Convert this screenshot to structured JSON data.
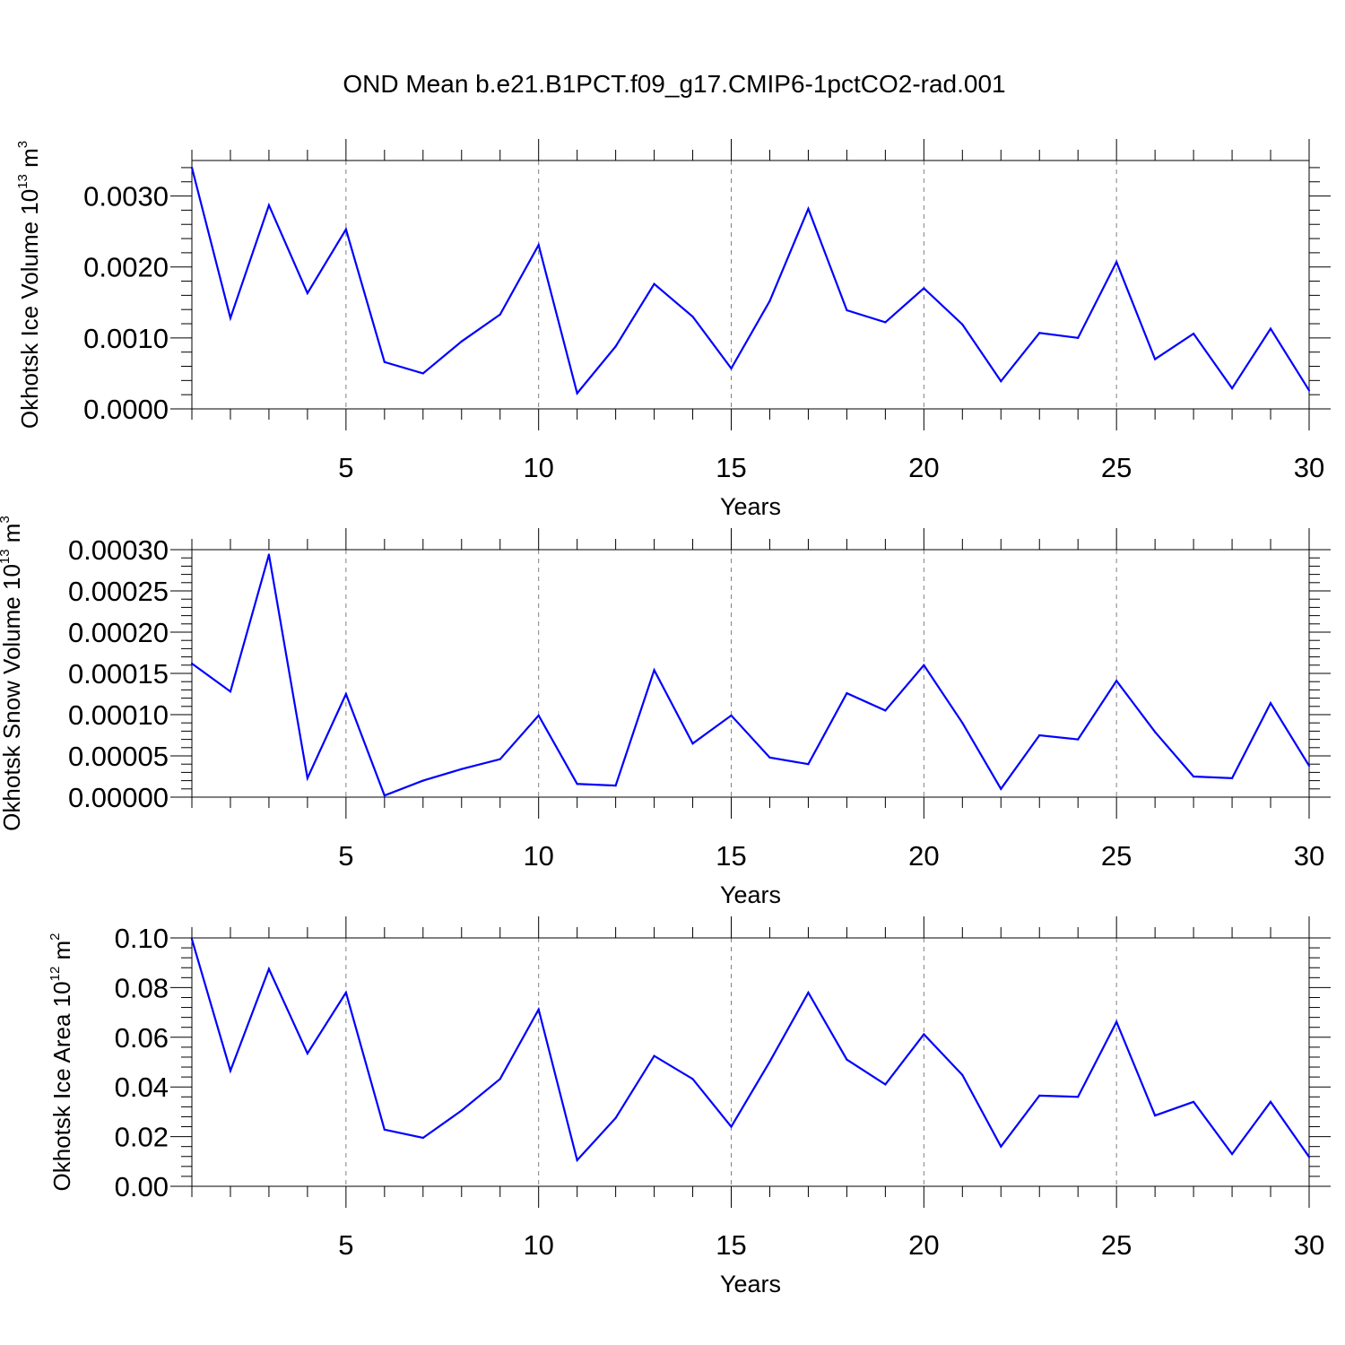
{
  "figure": {
    "title": "OND Mean b.e21.B1PCT.f09_g17.CMIP6-1pctCO2-rad.001",
    "line_color": "#0000ff",
    "grid_color": "#808080"
  },
  "chart_data": [
    {
      "type": "line",
      "xlabel": "Years",
      "ylabel": {
        "main": "Okhotsk Ice Volume 10",
        "exp": "13",
        "unit": " m",
        "unit_exp": "3"
      },
      "xlim": [
        1,
        30
      ],
      "ylim": [
        0.0,
        0.0035
      ],
      "xticks": [
        5,
        10,
        15,
        20,
        25,
        30
      ],
      "xtick_labels": [
        "5",
        "10",
        "15",
        "20",
        "25",
        "30"
      ],
      "yticks": [
        0.0,
        0.001,
        0.002,
        0.003
      ],
      "ytick_labels": [
        "0.0000",
        "0.0010",
        "0.0020",
        "0.0030"
      ],
      "grid": "vertical dashed at major x ticks",
      "x": [
        1,
        2,
        3,
        4,
        5,
        6,
        7,
        8,
        9,
        10,
        11,
        12,
        13,
        14,
        15,
        16,
        17,
        18,
        19,
        20,
        21,
        22,
        23,
        24,
        25,
        26,
        27,
        28,
        29,
        30
      ],
      "series": [
        {
          "values": [
            0.0034,
            0.00128,
            0.00287,
            0.00163,
            0.00253,
            0.00066,
            0.0005,
            0.00095,
            0.00133,
            0.00231,
            0.00022,
            0.00088,
            0.00176,
            0.0013,
            0.00057,
            0.00152,
            0.00282,
            0.00139,
            0.00122,
            0.0017,
            0.00119,
            0.00039,
            0.00107,
            0.001,
            0.00207,
            0.0007,
            0.00106,
            0.00029,
            0.00113,
            0.00026
          ]
        }
      ]
    },
    {
      "type": "line",
      "xlabel": "Years",
      "ylabel": {
        "main": "Okhotsk Snow Volume 10",
        "exp": "13",
        "unit": " m",
        "unit_exp": "3"
      },
      "xlim": [
        1,
        30
      ],
      "ylim": [
        0.0,
        0.0003
      ],
      "xticks": [
        5,
        10,
        15,
        20,
        25,
        30
      ],
      "xtick_labels": [
        "5",
        "10",
        "15",
        "20",
        "25",
        "30"
      ],
      "yticks": [
        0.0,
        5e-05,
        0.0001,
        0.00015,
        0.0002,
        0.00025,
        0.0003
      ],
      "ytick_labels": [
        "0.00000",
        "0.00005",
        "0.00010",
        "0.00015",
        "0.00020",
        "0.00025",
        "0.00030"
      ],
      "grid": "vertical dashed at major x ticks",
      "x": [
        1,
        2,
        3,
        4,
        5,
        6,
        7,
        8,
        9,
        10,
        11,
        12,
        13,
        14,
        15,
        16,
        17,
        18,
        19,
        20,
        21,
        22,
        23,
        24,
        25,
        26,
        27,
        28,
        29,
        30
      ],
      "series": [
        {
          "values": [
            0.000162,
            0.000128,
            0.000294,
            2.3e-05,
            0.000125,
            2e-06,
            2e-05,
            3.4e-05,
            4.6e-05,
            9.9e-05,
            1.6e-05,
            1.4e-05,
            0.000154,
            6.5e-05,
            9.9e-05,
            4.8e-05,
            4e-05,
            0.000126,
            0.000105,
            0.00016,
            9e-05,
            1e-05,
            7.5e-05,
            7e-05,
            0.000141,
            7.9e-05,
            2.5e-05,
            2.3e-05,
            0.000114,
            3.8e-05
          ]
        }
      ]
    },
    {
      "type": "line",
      "xlabel": "Years",
      "ylabel": {
        "main": "Okhotsk Ice Area 10",
        "exp": "12",
        "unit": " m",
        "unit_exp": "2"
      },
      "xlim": [
        1,
        30
      ],
      "ylim": [
        0.0,
        0.1
      ],
      "xticks": [
        5,
        10,
        15,
        20,
        25,
        30
      ],
      "xtick_labels": [
        "5",
        "10",
        "15",
        "20",
        "25",
        "30"
      ],
      "yticks": [
        0.0,
        0.02,
        0.04,
        0.06,
        0.08,
        0.1
      ],
      "ytick_labels": [
        "0.00",
        "0.02",
        "0.04",
        "0.06",
        "0.08",
        "0.10"
      ],
      "grid": "vertical dashed at major x ticks",
      "x": [
        1,
        2,
        3,
        4,
        5,
        6,
        7,
        8,
        9,
        10,
        11,
        12,
        13,
        14,
        15,
        16,
        17,
        18,
        19,
        20,
        21,
        22,
        23,
        24,
        25,
        26,
        27,
        28,
        29,
        30
      ],
      "series": [
        {
          "values": [
            0.0995,
            0.0465,
            0.0875,
            0.0535,
            0.078,
            0.0228,
            0.0195,
            0.0305,
            0.0432,
            0.0712,
            0.0105,
            0.0275,
            0.0525,
            0.0432,
            0.024,
            0.0502,
            0.078,
            0.051,
            0.041,
            0.0612,
            0.0448,
            0.016,
            0.0365,
            0.036,
            0.0662,
            0.0285,
            0.034,
            0.013,
            0.034,
            0.0118
          ]
        }
      ]
    }
  ]
}
